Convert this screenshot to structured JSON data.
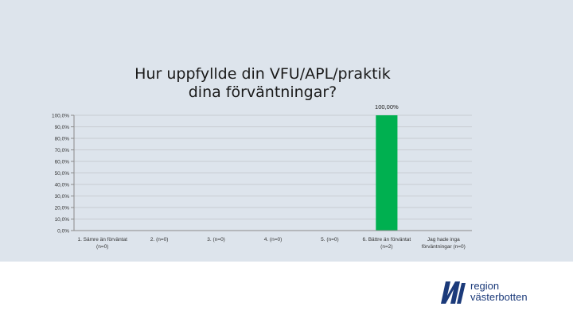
{
  "chart_data": {
    "type": "bar",
    "title": "Hur uppfyllde din VFU/APL/praktik dina förväntningar?",
    "categories": [
      [
        "1. Sämre än förväntat",
        "(n=0)"
      ],
      [
        "2. (n=0)"
      ],
      [
        "3. (n=0)"
      ],
      [
        "4. (n=0)"
      ],
      [
        "5. (n=0)"
      ],
      [
        "6. Bättre än förväntat",
        "(n=2)"
      ],
      [
        "Jag hade inga",
        "förväntningar (n=0)"
      ]
    ],
    "values": [
      0,
      0,
      0,
      0,
      0,
      100,
      0
    ],
    "data_labels": [
      "",
      "",
      "",
      "",
      "",
      "100,00%",
      ""
    ],
    "ylim": [
      0,
      100
    ],
    "yticks": [
      "0,0%",
      "10,0%",
      "20,0%",
      "30,0%",
      "40,0%",
      "50,0%",
      "60,0%",
      "70,0%",
      "80,0%",
      "90,0%",
      "100,0%"
    ],
    "grid": true,
    "bar_color": "#00b050",
    "grid_color": "#c8ccd2",
    "xlabel": "",
    "ylabel": ""
  },
  "logo": {
    "line1": "region",
    "line2": "västerbotten",
    "color": "#1b3a7a"
  }
}
